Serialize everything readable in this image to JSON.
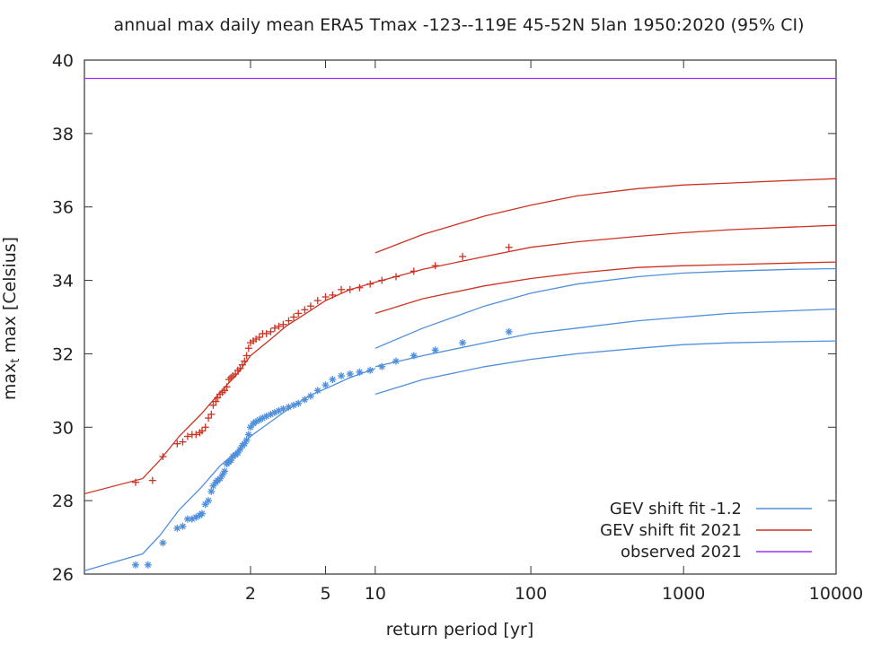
{
  "chart_data": {
    "type": "line",
    "title": "annual max daily mean ERA5 Tmax -123--119E 45-52N 5lan 1950:2020 (95% CI)",
    "xlabel": "return period [yr]",
    "ylabel_main": "max",
    "ylabel_sub": "t",
    "ylabel_rest": " max [Celsius]",
    "x_scale": "gumbel-log",
    "xlim": [
      1.0,
      10000
    ],
    "ylim": [
      26,
      40
    ],
    "x_ticks": [
      {
        "value": 2,
        "label": "2"
      },
      {
        "value": 5,
        "label": "5"
      },
      {
        "value": 10,
        "label": "10"
      },
      {
        "value": 100,
        "label": "100"
      },
      {
        "value": 1000,
        "label": "1000"
      },
      {
        "value": 10000,
        "label": "10000"
      }
    ],
    "y_ticks": [
      26,
      28,
      30,
      32,
      34,
      36,
      38,
      40
    ],
    "grid": false,
    "legend_position": "bottom-right",
    "legend": [
      {
        "label": "GEV shift fit -1.2",
        "color": "#4f8fdc"
      },
      {
        "label": "GEV shift fit 2021",
        "color": "#cc3322"
      },
      {
        "label": "observed 2021",
        "color": "#9b30ff"
      }
    ],
    "series": [
      {
        "kind": "line",
        "color": "#4f8fdc",
        "x": [
          1.0,
          1.03,
          1.07,
          1.15,
          1.3,
          1.5,
          1.75,
          2.0,
          2.5,
          3,
          4,
          5,
          7,
          10
        ],
        "values": [
          26.05,
          26.55,
          27.05,
          27.75,
          28.35,
          28.95,
          29.35,
          29.75,
          30.15,
          30.45,
          30.85,
          31.05,
          31.35,
          31.6
        ]
      },
      {
        "kind": "line",
        "color": "#4f8fdc",
        "x": [
          10,
          20,
          50,
          100,
          200,
          500,
          1000,
          2000,
          5000,
          10000
        ],
        "values": [
          32.15,
          32.7,
          33.3,
          33.65,
          33.9,
          34.1,
          34.2,
          34.25,
          34.3,
          34.32
        ]
      },
      {
        "kind": "line",
        "color": "#4f8fdc",
        "x": [
          10,
          20,
          50,
          100,
          200,
          500,
          1000,
          2000,
          5000,
          10000
        ],
        "values": [
          31.65,
          31.95,
          32.3,
          32.55,
          32.7,
          32.9,
          33.0,
          33.1,
          33.17,
          33.22
        ]
      },
      {
        "kind": "line",
        "color": "#4f8fdc",
        "x": [
          10,
          20,
          50,
          100,
          200,
          500,
          1000,
          2000,
          5000,
          10000
        ],
        "values": [
          30.9,
          31.3,
          31.65,
          31.85,
          32.0,
          32.15,
          32.25,
          32.3,
          32.33,
          32.35
        ]
      },
      {
        "kind": "line",
        "color": "#cc3322",
        "x": [
          1.0,
          1.03,
          1.07,
          1.15,
          1.3,
          1.5,
          1.75,
          2.0,
          2.5,
          3,
          4,
          5,
          7,
          10
        ],
        "values": [
          28.15,
          28.6,
          29.1,
          29.75,
          30.35,
          30.95,
          31.45,
          31.95,
          32.4,
          32.75,
          33.15,
          33.45,
          33.75,
          33.95
        ]
      },
      {
        "kind": "line",
        "color": "#cc3322",
        "x": [
          10,
          20,
          50,
          100,
          200,
          500,
          1000,
          2000,
          5000,
          10000
        ],
        "values": [
          34.75,
          35.25,
          35.75,
          36.05,
          36.3,
          36.5,
          36.6,
          36.65,
          36.72,
          36.77
        ]
      },
      {
        "kind": "line",
        "color": "#cc3322",
        "x": [
          10,
          20,
          50,
          100,
          200,
          500,
          1000,
          2000,
          5000,
          10000
        ],
        "values": [
          33.95,
          34.3,
          34.65,
          34.9,
          35.05,
          35.2,
          35.3,
          35.38,
          35.45,
          35.5
        ]
      },
      {
        "kind": "line",
        "color": "#cc3322",
        "x": [
          10,
          20,
          50,
          100,
          200,
          500,
          1000,
          2000,
          5000,
          10000
        ],
        "values": [
          33.1,
          33.5,
          33.85,
          34.05,
          34.2,
          34.35,
          34.4,
          34.43,
          34.47,
          34.5
        ]
      },
      {
        "kind": "line",
        "color": "#9b30ff",
        "x": [
          1.0,
          10000
        ],
        "values": [
          39.5,
          39.5
        ]
      },
      {
        "kind": "points",
        "marker": "plus",
        "color": "#cc3322",
        "x": [
          1.02,
          1.05,
          1.08,
          1.14,
          1.17,
          1.2,
          1.23,
          1.26,
          1.29,
          1.31,
          1.34,
          1.37,
          1.4,
          1.42,
          1.45,
          1.47,
          1.5,
          1.53,
          1.56,
          1.59,
          1.62,
          1.65,
          1.68,
          1.72,
          1.76,
          1.8,
          1.84,
          1.88,
          1.92,
          1.96,
          2.0,
          2.06,
          2.12,
          2.2,
          2.28,
          2.38,
          2.5,
          2.62,
          2.75,
          2.9,
          3.1,
          3.3,
          3.5,
          3.8,
          4.1,
          4.5,
          5.0,
          5.5,
          6.2,
          7.0,
          8.0,
          9.3,
          11,
          13.5,
          17.5,
          24,
          36,
          72
        ],
        "values": [
          28.5,
          28.55,
          29.2,
          29.55,
          29.6,
          29.75,
          29.8,
          29.8,
          29.85,
          29.9,
          30.0,
          30.25,
          30.35,
          30.6,
          30.7,
          30.8,
          30.9,
          30.95,
          31.0,
          31.1,
          31.3,
          31.35,
          31.4,
          31.45,
          31.55,
          31.6,
          31.7,
          31.8,
          31.95,
          32.15,
          32.3,
          32.35,
          32.4,
          32.45,
          32.55,
          32.55,
          32.6,
          32.7,
          32.75,
          32.8,
          32.9,
          33.0,
          33.1,
          33.2,
          33.3,
          33.45,
          33.55,
          33.6,
          33.75,
          33.75,
          33.8,
          33.9,
          34.0,
          34.1,
          34.25,
          34.4,
          34.65,
          34.9
        ]
      },
      {
        "kind": "points",
        "marker": "star",
        "color": "#4f8fdc",
        "x": [
          1.02,
          1.04,
          1.08,
          1.14,
          1.17,
          1.2,
          1.23,
          1.26,
          1.29,
          1.31,
          1.34,
          1.37,
          1.4,
          1.42,
          1.45,
          1.47,
          1.5,
          1.53,
          1.56,
          1.59,
          1.62,
          1.65,
          1.68,
          1.72,
          1.76,
          1.8,
          1.84,
          1.88,
          1.92,
          1.96,
          2.0,
          2.06,
          2.12,
          2.2,
          2.28,
          2.38,
          2.5,
          2.62,
          2.75,
          2.9,
          3.1,
          3.3,
          3.5,
          3.8,
          4.1,
          4.5,
          5.0,
          5.5,
          6.2,
          7.0,
          8.0,
          9.3,
          11,
          13.5,
          17.5,
          24,
          36,
          72
        ],
        "values": [
          26.25,
          26.25,
          26.85,
          27.25,
          27.3,
          27.5,
          27.5,
          27.55,
          27.6,
          27.65,
          27.9,
          28.0,
          28.25,
          28.4,
          28.5,
          28.55,
          28.6,
          28.7,
          28.8,
          29.0,
          29.05,
          29.1,
          29.2,
          29.25,
          29.3,
          29.4,
          29.5,
          29.55,
          29.65,
          29.8,
          30.0,
          30.1,
          30.15,
          30.2,
          30.25,
          30.3,
          30.35,
          30.4,
          30.45,
          30.5,
          30.55,
          30.6,
          30.65,
          30.75,
          30.85,
          31.0,
          31.15,
          31.3,
          31.4,
          31.45,
          31.5,
          31.55,
          31.65,
          31.8,
          31.95,
          32.1,
          32.3,
          32.6
        ]
      }
    ]
  }
}
